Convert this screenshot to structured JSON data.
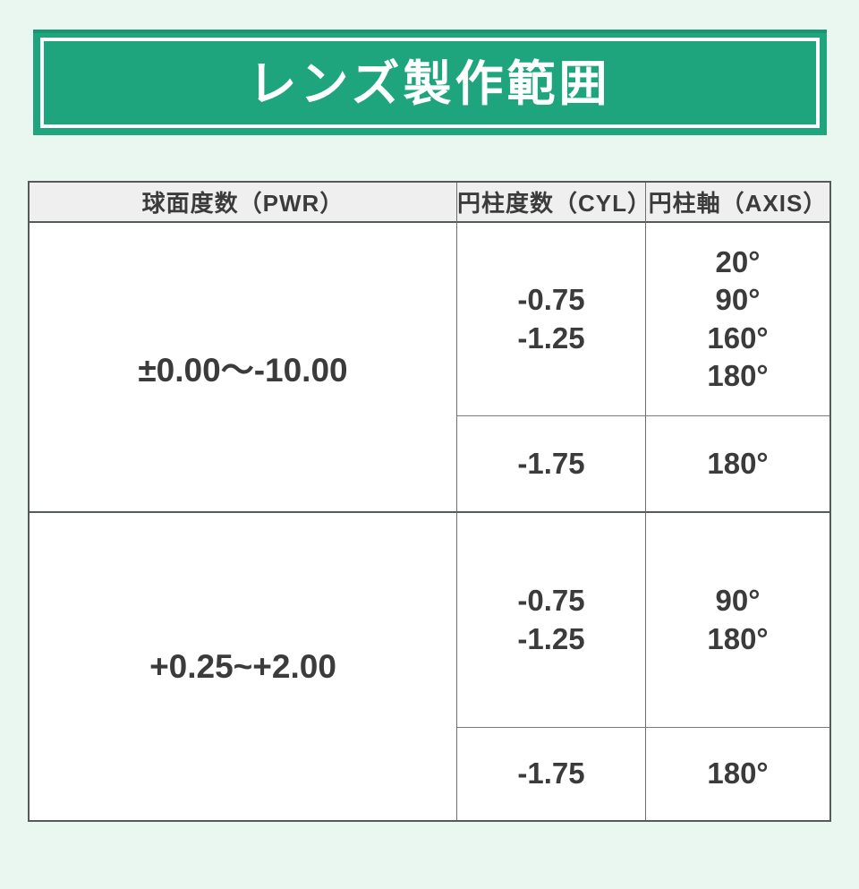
{
  "banner": {
    "title": "レンズ製作範囲",
    "bg_color": "#1fa57d",
    "page_bg_color": "#eaf6f0"
  },
  "table": {
    "headers": [
      {
        "label": "球面度数（PWR）"
      },
      {
        "label": "円柱度数（CYL）"
      },
      {
        "label": "円柱軸（AXIS）"
      }
    ],
    "rows": [
      {
        "pwr": "±0.00〜-10.00",
        "sub_rows": [
          {
            "cyl": [
              "-0.75",
              "-1.25"
            ],
            "axis": [
              "20°",
              "90°",
              "160°",
              "180°"
            ]
          },
          {
            "cyl": [
              "-1.75"
            ],
            "axis": [
              "180°"
            ]
          }
        ]
      },
      {
        "pwr": "+0.25~+2.00",
        "sub_rows": [
          {
            "cyl": [
              "-0.75",
              "-1.25"
            ],
            "axis": [
              "90°",
              "180°"
            ]
          },
          {
            "cyl": [
              "-1.75"
            ],
            "axis": [
              "180°"
            ]
          }
        ]
      }
    ]
  }
}
